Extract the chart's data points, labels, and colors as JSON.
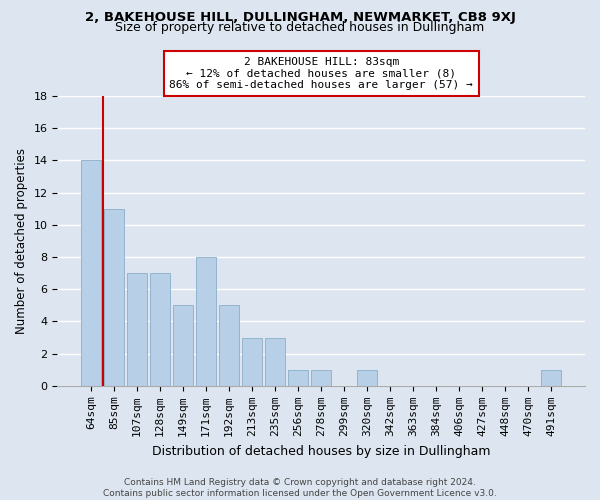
{
  "title": "2, BAKEHOUSE HILL, DULLINGHAM, NEWMARKET, CB8 9XJ",
  "subtitle": "Size of property relative to detached houses in Dullingham",
  "xlabel": "Distribution of detached houses by size in Dullingham",
  "ylabel": "Number of detached properties",
  "categories": [
    "64sqm",
    "85sqm",
    "107sqm",
    "128sqm",
    "149sqm",
    "171sqm",
    "192sqm",
    "213sqm",
    "235sqm",
    "256sqm",
    "278sqm",
    "299sqm",
    "320sqm",
    "342sqm",
    "363sqm",
    "384sqm",
    "406sqm",
    "427sqm",
    "448sqm",
    "470sqm",
    "491sqm"
  ],
  "values": [
    14,
    11,
    7,
    7,
    5,
    8,
    5,
    3,
    3,
    1,
    1,
    0,
    1,
    0,
    0,
    0,
    0,
    0,
    0,
    0,
    1
  ],
  "bar_color": "#b8cfe8",
  "bar_edge_color": "#8aaec8",
  "vline_color": "#cc0000",
  "annotation_text": "2 BAKEHOUSE HILL: 83sqm\n← 12% of detached houses are smaller (8)\n86% of semi-detached houses are larger (57) →",
  "annotation_box_color": "#ffffff",
  "annotation_box_edge_color": "#cc0000",
  "ylim": [
    0,
    18
  ],
  "yticks": [
    0,
    2,
    4,
    6,
    8,
    10,
    12,
    14,
    16,
    18
  ],
  "bg_color": "#dde6f0",
  "plot_bg_color": "#dde6f0",
  "grid_color": "#ffffff",
  "footer_text": "Contains HM Land Registry data © Crown copyright and database right 2024.\nContains public sector information licensed under the Open Government Licence v3.0.",
  "title_fontsize": 9.5,
  "subtitle_fontsize": 9,
  "xlabel_fontsize": 9,
  "ylabel_fontsize": 8.5,
  "tick_fontsize": 8,
  "annotation_fontsize": 8,
  "footer_fontsize": 6.5
}
